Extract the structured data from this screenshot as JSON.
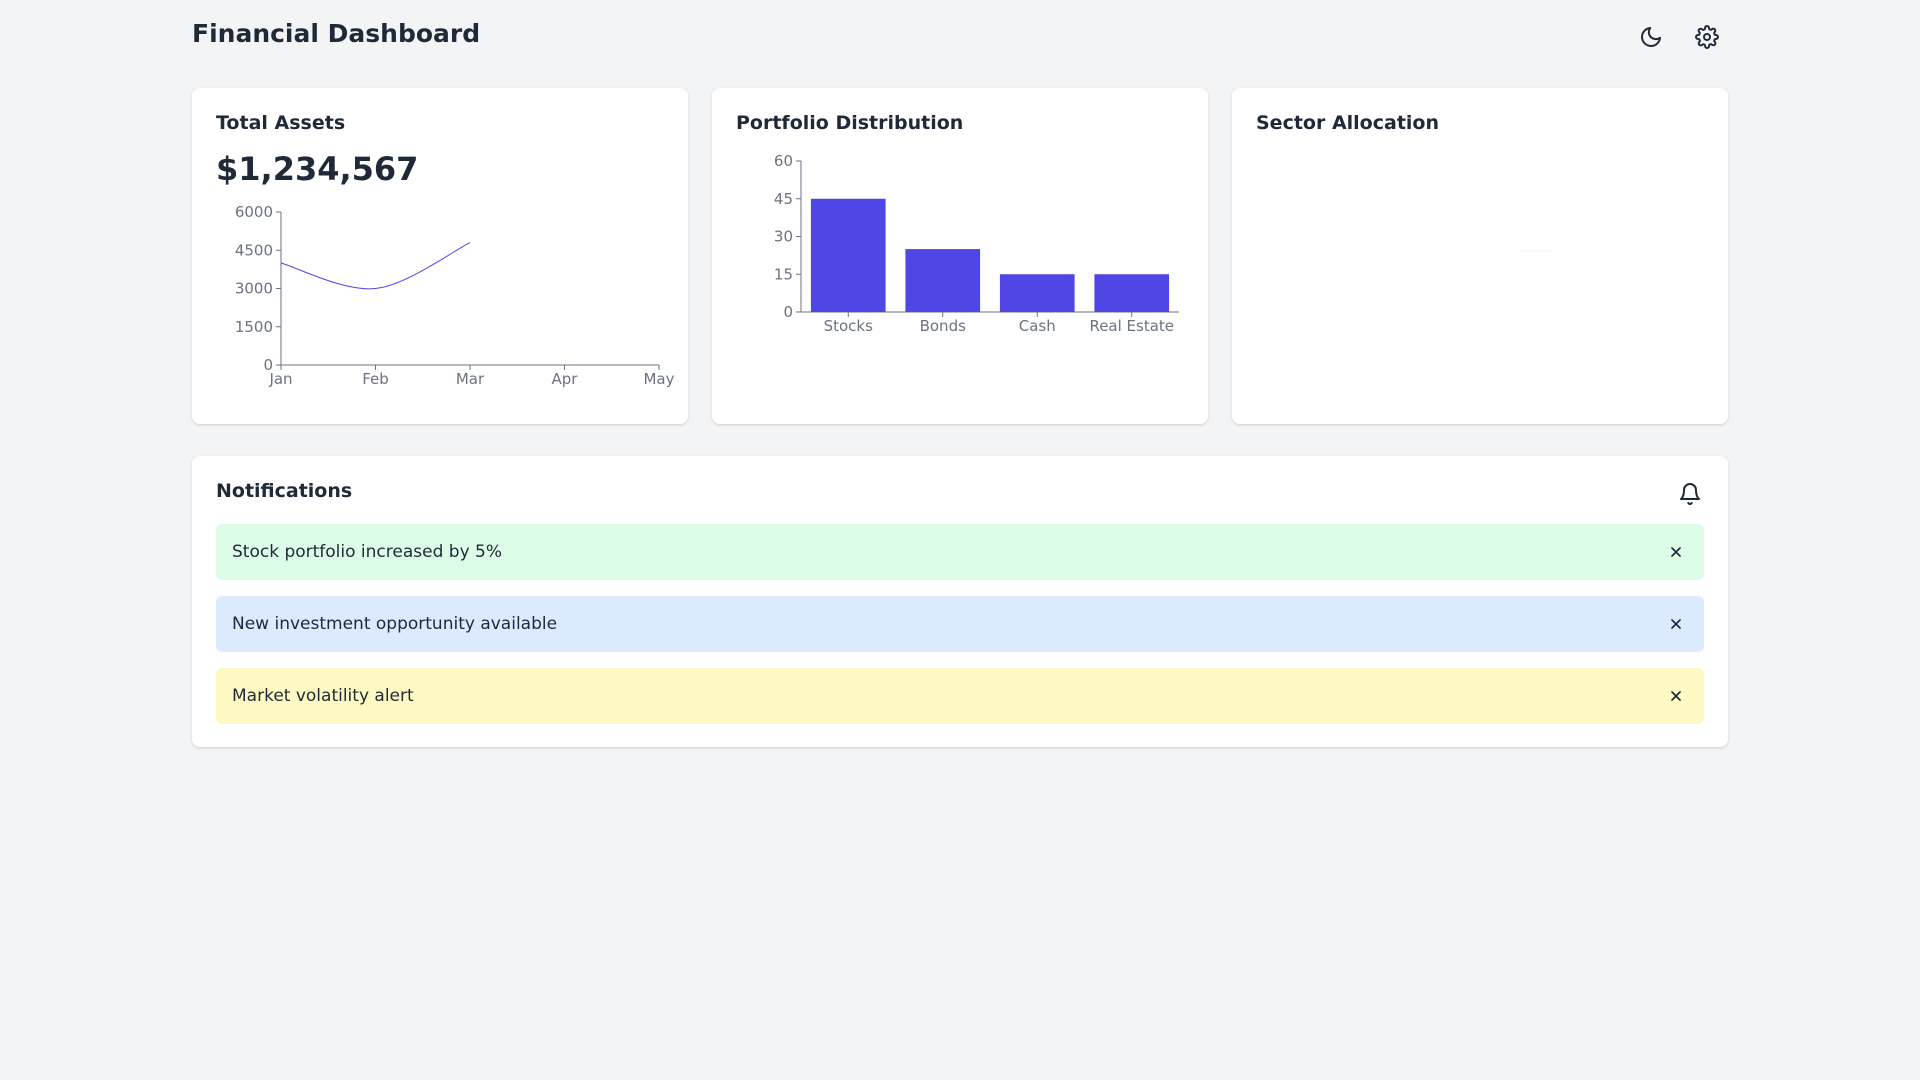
{
  "header": {
    "title": "Financial Dashboard",
    "icons": [
      "moon-icon",
      "gear-icon"
    ]
  },
  "colors": {
    "accent": "#4f46e5",
    "background": "#f3f4f6",
    "success_bg": "#dcfce7",
    "info_bg": "#dbeafe",
    "warning_bg": "#fef9c3"
  },
  "cards": {
    "total_assets": {
      "title": "Total Assets",
      "value": "$1,234,567"
    },
    "portfolio": {
      "title": "Portfolio Distribution"
    },
    "sector": {
      "title": "Sector Allocation"
    }
  },
  "chart_data": [
    {
      "type": "line",
      "x": [
        "Jan",
        "Feb",
        "Mar"
      ],
      "values": [
        4000,
        3000,
        4800
      ],
      "x_ticks": [
        "Jan",
        "Feb",
        "Mar",
        "Apr",
        "May"
      ],
      "y_ticks": [
        "0",
        "1500",
        "3000",
        "4500",
        "6000"
      ],
      "ylim": [
        0,
        6000
      ],
      "title": "",
      "xlabel": "",
      "ylabel": "",
      "grid": false
    },
    {
      "type": "bar",
      "categories": [
        "Stocks",
        "Bonds",
        "Cash",
        "Real Estate"
      ],
      "values": [
        45,
        25,
        15,
        15
      ],
      "y_ticks": [
        "0",
        "15",
        "30",
        "45",
        "60"
      ],
      "ylim": [
        0,
        60
      ],
      "title": "",
      "xlabel": "",
      "ylabel": "",
      "grid": false
    }
  ],
  "notifications": {
    "title": "Notifications",
    "items": [
      {
        "text": "Stock portfolio increased by 5%",
        "status": "success"
      },
      {
        "text": "New investment opportunity available",
        "status": "info"
      },
      {
        "text": "Market volatility alert",
        "status": "warning"
      }
    ]
  }
}
